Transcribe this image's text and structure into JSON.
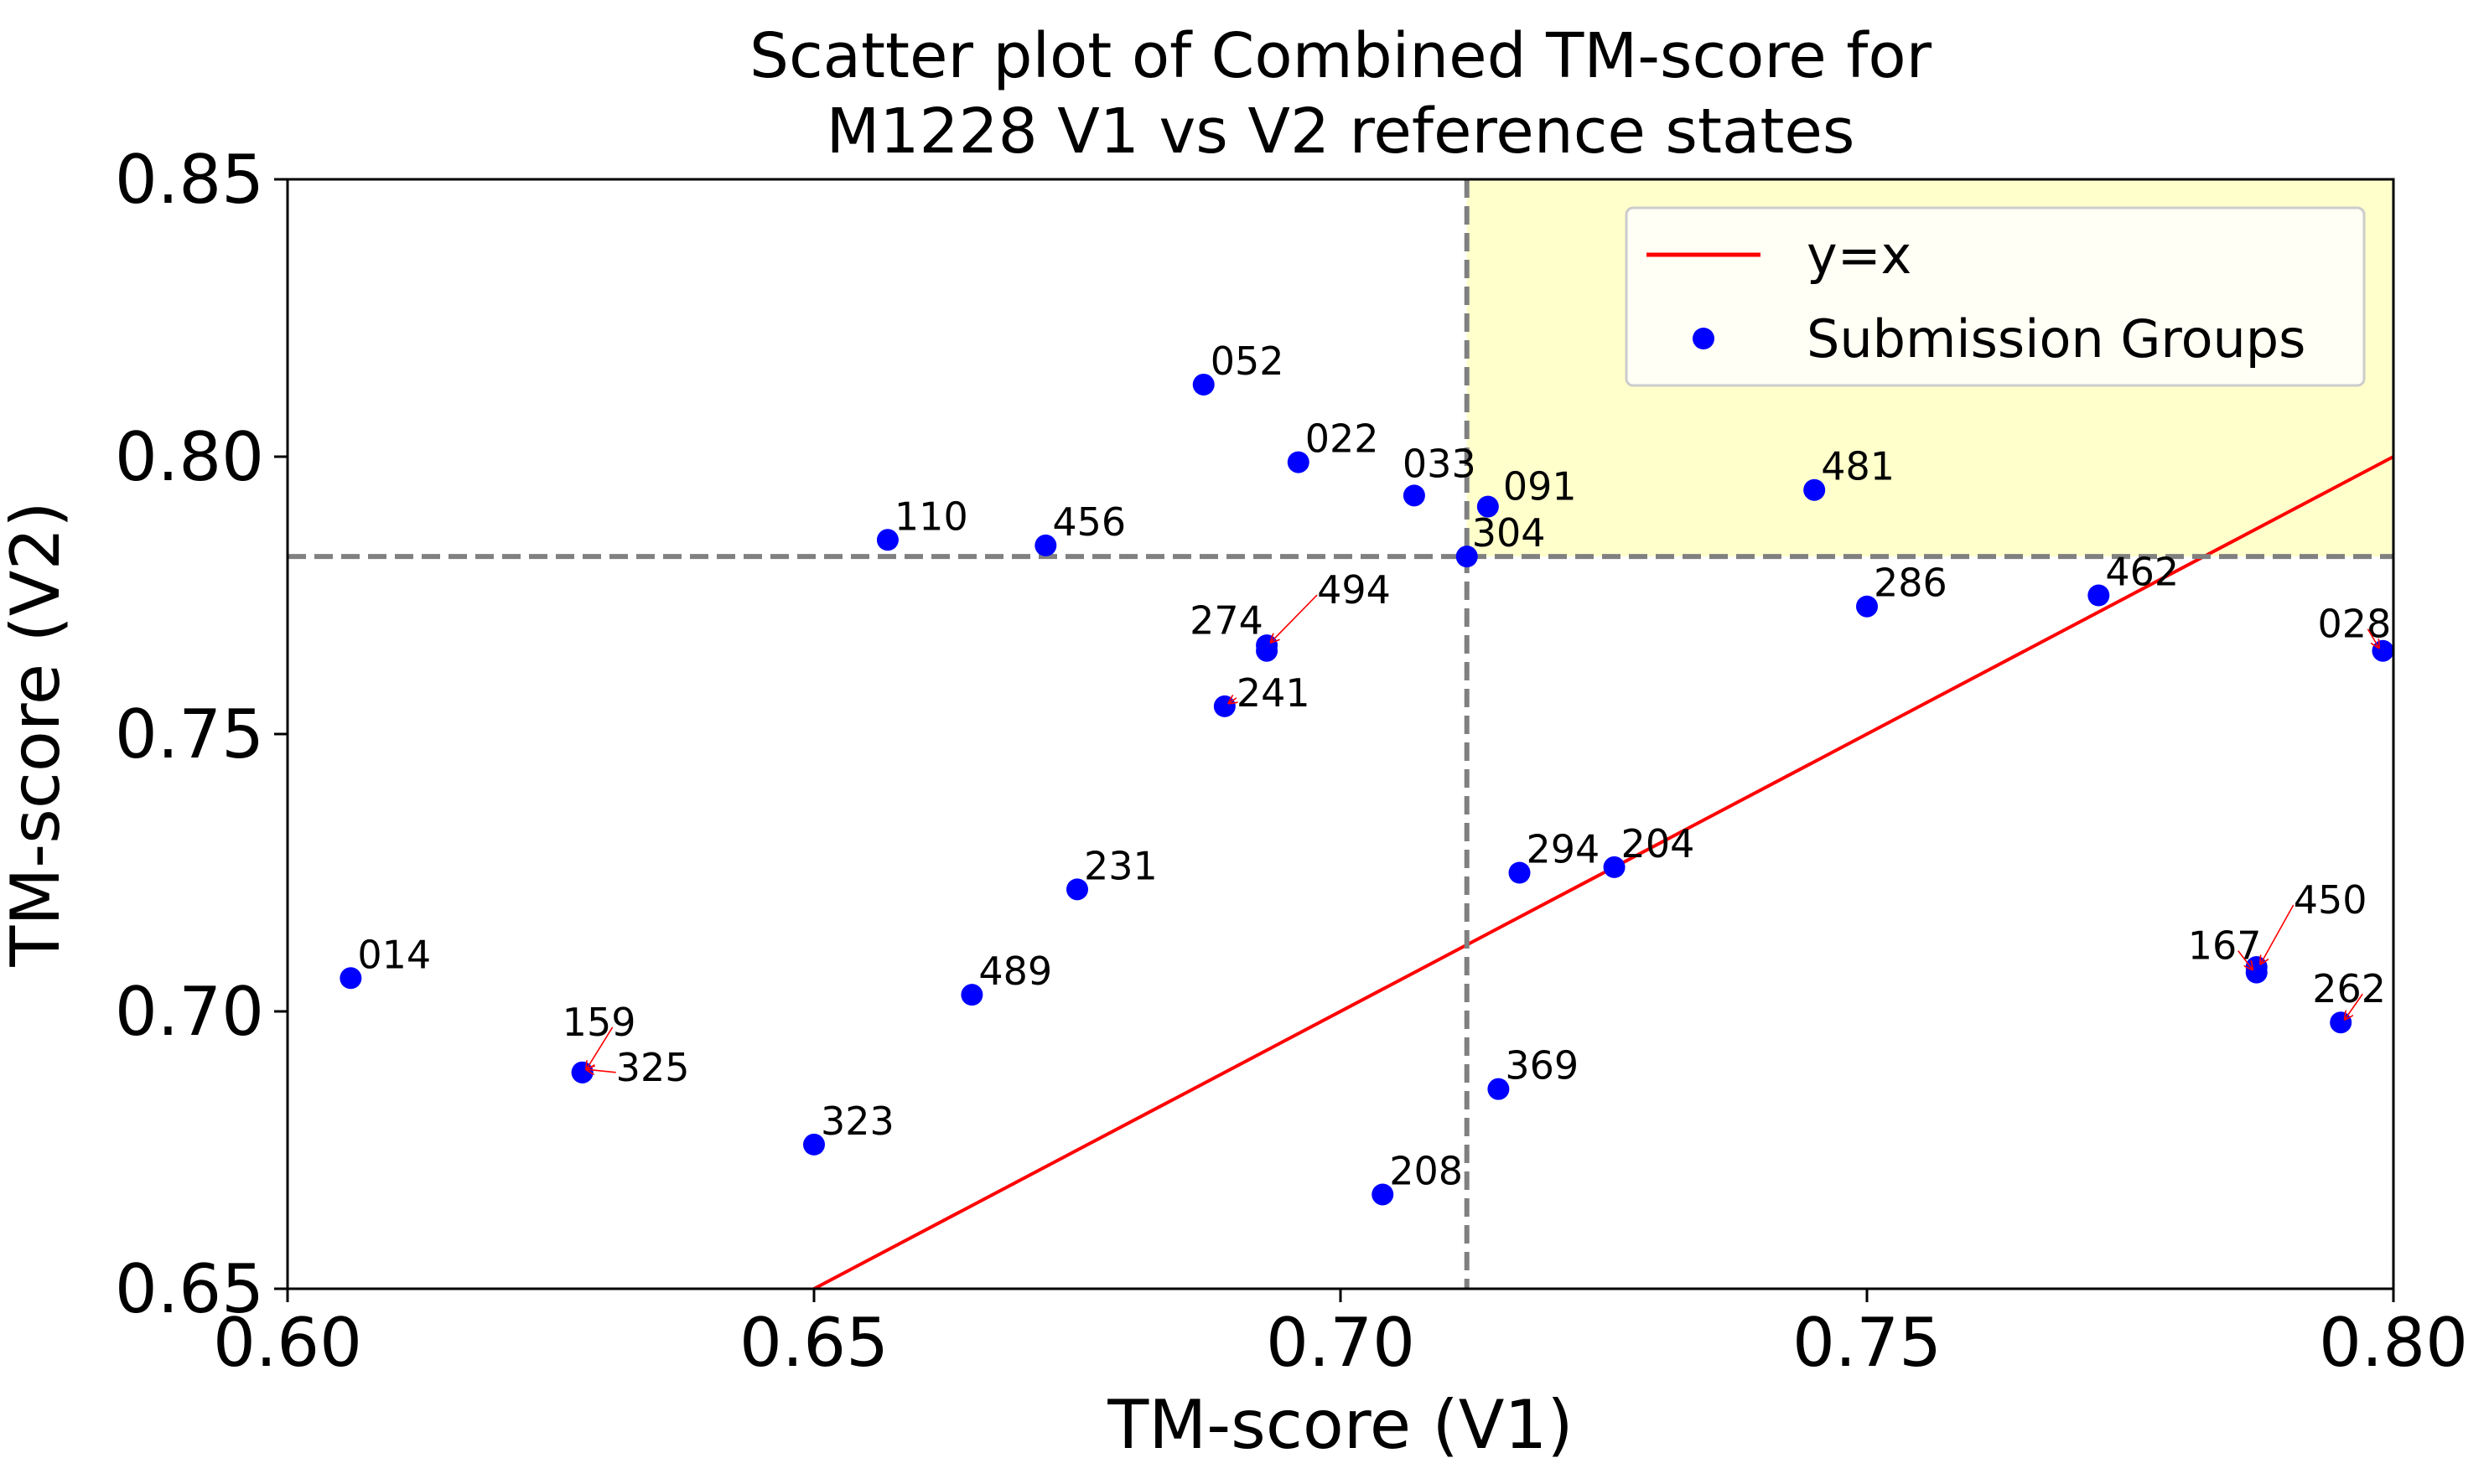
{
  "chart_data": {
    "type": "scatter",
    "title": [
      "Scatter plot of Combined TM-score for",
      "M1228 V1 vs V2 reference states"
    ],
    "xlabel": "TM-score (V1)",
    "ylabel": "TM-score (V2)",
    "xlim": [
      0.6,
      0.8
    ],
    "ylim": [
      0.65,
      0.85
    ],
    "xticks": [
      "0.60",
      "0.65",
      "0.70",
      "0.75",
      "0.80"
    ],
    "yticks": [
      "0.65",
      "0.70",
      "0.75",
      "0.80",
      "0.85"
    ],
    "grid": false,
    "legend": {
      "placement": "upper-right",
      "entries": [
        {
          "label": "y=x",
          "marker": "line",
          "color": "#ff0000"
        },
        {
          "label": "Submission Groups",
          "marker": "dot",
          "color": "#0000ff"
        }
      ]
    },
    "reference_lines": {
      "identity": {
        "label": "y=x",
        "color": "#ff0000",
        "from": [
          0.65,
          0.65
        ],
        "to": [
          0.8,
          0.8
        ]
      },
      "vertical_dashed_x": 0.712,
      "horizontal_dashed_y": 0.782,
      "dashed_color": "#808080"
    },
    "highlight_region": {
      "x": [
        0.712,
        0.8
      ],
      "y": [
        0.782,
        0.85
      ],
      "color": "#ffffcc"
    },
    "series": [
      {
        "name": "Submission Groups",
        "color": "#0000ff",
        "points": [
          {
            "label": "052",
            "x": 0.687,
            "y": 0.813
          },
          {
            "label": "022",
            "x": 0.696,
            "y": 0.799
          },
          {
            "label": "033",
            "x": 0.707,
            "y": 0.793
          },
          {
            "label": "091",
            "x": 0.714,
            "y": 0.791
          },
          {
            "label": "304",
            "x": 0.712,
            "y": 0.782
          },
          {
            "label": "481",
            "x": 0.745,
            "y": 0.794
          },
          {
            "label": "110",
            "x": 0.657,
            "y": 0.785
          },
          {
            "label": "456",
            "x": 0.672,
            "y": 0.784
          },
          {
            "label": "494",
            "x": 0.693,
            "y": 0.766
          },
          {
            "label": "274",
            "x": 0.693,
            "y": 0.765
          },
          {
            "label": "241",
            "x": 0.689,
            "y": 0.755
          },
          {
            "label": "286",
            "x": 0.75,
            "y": 0.773
          },
          {
            "label": "462",
            "x": 0.772,
            "y": 0.775
          },
          {
            "label": "028",
            "x": 0.799,
            "y": 0.765
          },
          {
            "label": "231",
            "x": 0.675,
            "y": 0.722
          },
          {
            "label": "294",
            "x": 0.717,
            "y": 0.725
          },
          {
            "label": "204",
            "x": 0.726,
            "y": 0.726
          },
          {
            "label": "014",
            "x": 0.606,
            "y": 0.706
          },
          {
            "label": "489",
            "x": 0.665,
            "y": 0.703
          },
          {
            "label": "159",
            "x": 0.628,
            "y": 0.689
          },
          {
            "label": "325",
            "x": 0.628,
            "y": 0.689
          },
          {
            "label": "323",
            "x": 0.65,
            "y": 0.676
          },
          {
            "label": "369",
            "x": 0.715,
            "y": 0.686
          },
          {
            "label": "208",
            "x": 0.704,
            "y": 0.667
          },
          {
            "label": "450",
            "x": 0.787,
            "y": 0.708
          },
          {
            "label": "167",
            "x": 0.787,
            "y": 0.707
          },
          {
            "label": "262",
            "x": 0.795,
            "y": 0.698
          }
        ]
      }
    ]
  }
}
